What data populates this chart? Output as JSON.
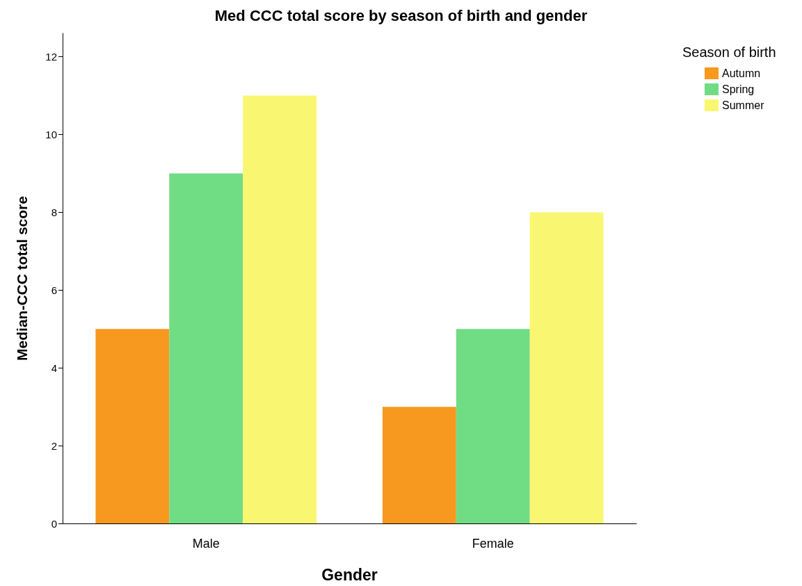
{
  "chart_data": {
    "type": "bar",
    "title": "Med CCC total score by season of birth and gender",
    "xlabel": "Gender",
    "ylabel": "Median-CCC total score",
    "legend_title": "Season of birth",
    "categories": [
      "Male",
      "Female"
    ],
    "series": [
      {
        "name": "Autumn",
        "color": "#f7981f",
        "values": [
          5,
          3
        ]
      },
      {
        "name": "Spring",
        "color": "#70dc84",
        "values": [
          9,
          5
        ]
      },
      {
        "name": "Summer",
        "color": "#f9f671",
        "values": [
          11,
          8
        ]
      }
    ],
    "ylim": [
      0,
      12.6
    ],
    "yticks": [
      0,
      2,
      4,
      6,
      8,
      10,
      12
    ],
    "grid": false,
    "legend": "top right"
  }
}
